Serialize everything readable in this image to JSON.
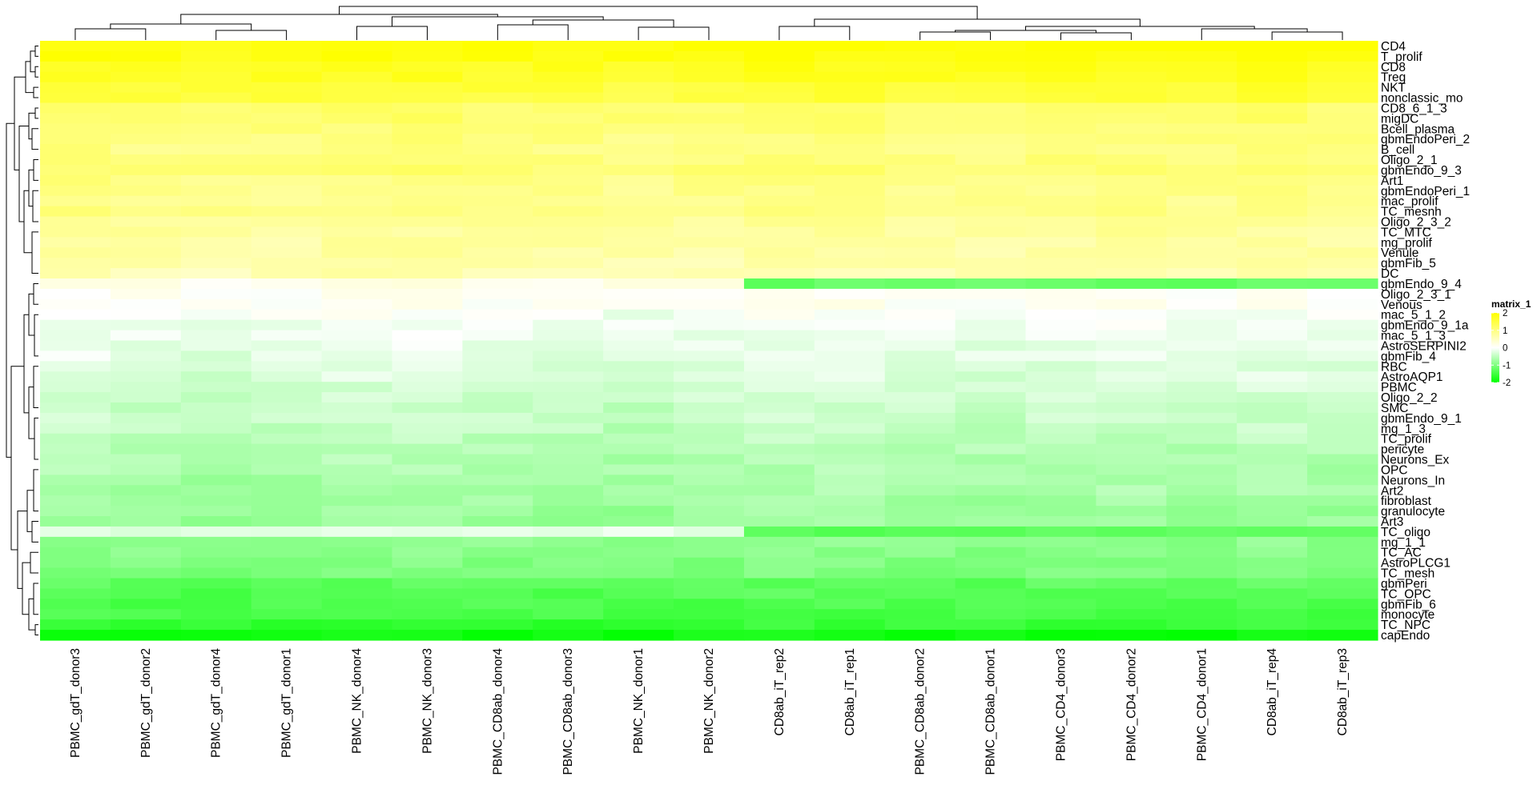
{
  "chart_data": {
    "type": "heatmap",
    "title": "",
    "xlabel": "",
    "ylabel": "",
    "legend": {
      "title": "matrix_1",
      "ticks": [
        2,
        1,
        0,
        -1,
        -2
      ],
      "tick_labels": [
        "2",
        "1",
        "0",
        "-1",
        "-2"
      ],
      "colors": [
        "#00ff00",
        "#ffffff",
        "#ffff00"
      ],
      "color_stops": [
        -2,
        0,
        2
      ],
      "placement": "right"
    },
    "columns": [
      "PBMC_gdT_donor3",
      "PBMC_gdT_donor2",
      "PBMC_gdT_donor4",
      "PBMC_gdT_donor1",
      "PBMC_NK_donor4",
      "PBMC_NK_donor3",
      "PBMC_CD8ab_donor4",
      "PBMC_CD8ab_donor3",
      "PBMC_NK_donor1",
      "PBMC_NK_donor2",
      "CD8ab_iT_rep2",
      "CD8ab_iT_rep1",
      "PBMC_CD8ab_donor2",
      "PBMC_CD8ab_donor1",
      "PBMC_CD4_donor3",
      "PBMC_CD4_donor2",
      "PBMC_CD4_donor1",
      "CD8ab_iT_rep4",
      "CD8ab_iT_rep3"
    ],
    "rows": [
      "CD4",
      "T_prolif",
      "CD8",
      "Treg",
      "NKT",
      "nonclassic_mo",
      "CD8_6_1_3",
      "migDC",
      "Bcell_plasma",
      "gbmEndoPeri_2",
      "B_cell",
      "Oligo_2_1",
      "gbmEndo_9_3",
      "Art1",
      "gbmEndoPeri_1",
      "mac_prolif",
      "TC_mesnh",
      "Oligo_2_3_2",
      "TC_MTC",
      "mg_prolif",
      "Venule",
      "gbmFib_5",
      "DC",
      "gbmEndo_9_4",
      "Oligo_2_3_1",
      "Venous",
      "mac_5_1_2",
      "gbmEndo_9_1a",
      "mac_5_1_3",
      "AstroSERPINI2",
      "gbmFib_4",
      "RBC",
      "AstroAQP1",
      "PBMC",
      "Oligo_2_2",
      "SMC",
      "gbmEndo_9_1",
      "mg_1_3",
      "TC_prolif",
      "pericyte",
      "Neurons_Ex",
      "OPC",
      "Neurons_In",
      "Art2",
      "fibroblast",
      "granulocyte",
      "Art3",
      "TC_oligo",
      "mg_1_1",
      "TC_AC",
      "AstroPLCG1",
      "TC_mesh",
      "gbmPeri",
      "TC_OPC",
      "gbmFib_6",
      "monocyte",
      "TC_NPC",
      "capEndo"
    ],
    "row_base": [
      1.95,
      1.9,
      1.75,
      1.7,
      1.55,
      1.5,
      1.1,
      1.15,
      1.05,
      1.0,
      0.95,
      1.0,
      1.1,
      0.95,
      0.9,
      0.85,
      0.95,
      0.8,
      0.75,
      0.7,
      0.7,
      0.65,
      0.6,
      0.2,
      0.05,
      0.05,
      -0.05,
      -0.1,
      -0.15,
      -0.2,
      -0.2,
      -0.3,
      -0.3,
      -0.35,
      -0.4,
      -0.45,
      -0.45,
      -0.5,
      -0.55,
      -0.6,
      -0.6,
      -0.65,
      -0.7,
      -0.7,
      -0.75,
      -0.8,
      -0.8,
      -0.85,
      -0.9,
      -0.95,
      -1.0,
      -1.05,
      -1.3,
      -1.35,
      -1.4,
      -1.45,
      -1.6,
      -1.9
    ],
    "col_shift": [
      0.05,
      0.0,
      -0.05,
      0.0,
      0.05,
      0.05,
      0.0,
      0.0,
      -0.05,
      0.0,
      0.05,
      0.05,
      0.0,
      0.0,
      0.05,
      0.05,
      0.0,
      0.05,
      0.0
    ],
    "notes_overrides": [
      {
        "row": "gbmEndo_9_4",
        "columns_from": "CD8ab_iT_rep2",
        "value": -1.2
      },
      {
        "row": "TC_oligo",
        "columns_to": "PBMC_NK_donor2",
        "value": -0.2
      },
      {
        "row": "TC_oligo",
        "columns_from": "CD8ab_iT_rep2",
        "value": -1.3
      }
    ]
  }
}
